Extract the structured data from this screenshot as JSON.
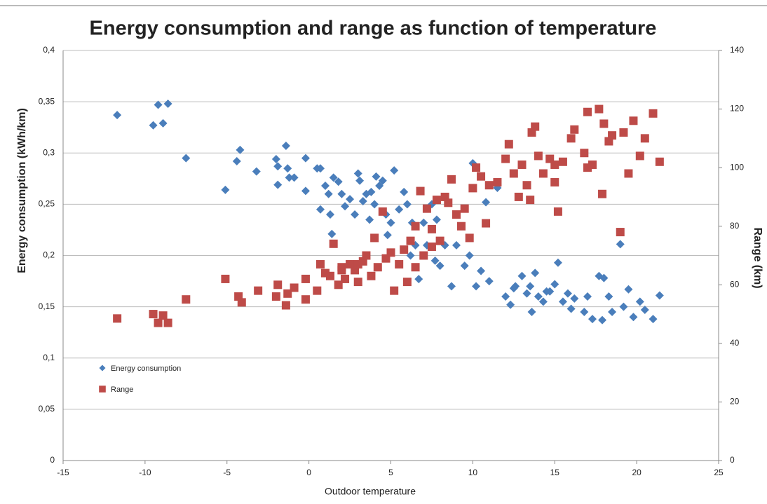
{
  "chart_data": {
    "type": "scatter",
    "title": "Energy consumption and range as function of temperature",
    "x_label": "Outdoor temperature",
    "y_label": "Energy consumption (kWh/km)",
    "y2_label": "Range (km)",
    "xlim": [
      -15,
      25
    ],
    "xticks": [
      -15,
      -10,
      -5,
      0,
      5,
      10,
      15,
      20,
      25
    ],
    "ylim": [
      0,
      0.4
    ],
    "yticks": [
      0,
      {
        "value": 0.05,
        "label": "0,05"
      },
      {
        "value": 0.1,
        "label": "0,1"
      },
      {
        "value": 0.15,
        "label": "0,15"
      },
      {
        "value": 0.2,
        "label": "0,2"
      },
      {
        "value": 0.25,
        "label": "0,25"
      },
      {
        "value": 0.3,
        "label": "0,3"
      },
      {
        "value": 0.35,
        "label": "0,35"
      },
      {
        "value": 0.4,
        "label": "0,4"
      }
    ],
    "y2lim": [
      0,
      140
    ],
    "y2ticks": [
      0,
      20,
      40,
      60,
      80,
      100,
      120,
      140
    ],
    "grid": true,
    "legend": "lower-left",
    "series": [
      {
        "name": "Energy consumption",
        "color": "#4a7ebb",
        "marker": "diamond",
        "x": [
          -11.7,
          -9.5,
          -9.2,
          -8.9,
          -8.6,
          -7.5,
          -5.1,
          -4.4,
          -4.2,
          -3.2,
          -2,
          -1.9,
          -1.9,
          -1.4,
          -1.3,
          -1.2,
          -0.9,
          -0.2,
          -0.2,
          0.5,
          0.7,
          0.7,
          1,
          1.2,
          1.3,
          1.4,
          1.5,
          1.8,
          2,
          2.2,
          2.5,
          2.8,
          3,
          3.1,
          3.3,
          3.5,
          3.8,
          4,
          4.1,
          4.3,
          4.5,
          4.7,
          5,
          5.2,
          5.5,
          5.8,
          6,
          6.3,
          6.5,
          6.7,
          7,
          7.2,
          7.5,
          7.8,
          8,
          8.3,
          8.7,
          9,
          9.5,
          9.8,
          10,
          10.2,
          10.5,
          10.8,
          11,
          11.5,
          12,
          12.3,
          12.6,
          13,
          13.3,
          13.6,
          13.8,
          14,
          14.3,
          14.7,
          15,
          15.2,
          15.5,
          16,
          16.2,
          16.8,
          17,
          17.3,
          17.7,
          17.9,
          18,
          18.3,
          18.5,
          19,
          19.2,
          19.5,
          19.8,
          20.2,
          20.5,
          21,
          21.4,
          12.5,
          13.5,
          14.5,
          15.8,
          3.7,
          4.8,
          6.2,
          7.7
        ],
        "values": [
          0.337,
          0.327,
          0.347,
          0.329,
          0.348,
          0.295,
          0.264,
          0.292,
          0.303,
          0.282,
          0.294,
          0.269,
          0.287,
          0.307,
          0.285,
          0.276,
          0.276,
          0.295,
          0.263,
          0.285,
          0.285,
          0.245,
          0.268,
          0.26,
          0.24,
          0.221,
          0.276,
          0.272,
          0.26,
          0.248,
          0.255,
          0.24,
          0.28,
          0.273,
          0.253,
          0.26,
          0.262,
          0.25,
          0.277,
          0.268,
          0.273,
          0.24,
          0.232,
          0.283,
          0.245,
          0.262,
          0.25,
          0.232,
          0.21,
          0.177,
          0.232,
          0.21,
          0.25,
          0.235,
          0.19,
          0.21,
          0.17,
          0.21,
          0.19,
          0.2,
          0.29,
          0.17,
          0.185,
          0.252,
          0.175,
          0.266,
          0.16,
          0.152,
          0.17,
          0.18,
          0.163,
          0.145,
          0.183,
          0.16,
          0.155,
          0.165,
          0.172,
          0.193,
          0.155,
          0.148,
          0.158,
          0.145,
          0.16,
          0.138,
          0.18,
          0.137,
          0.178,
          0.16,
          0.145,
          0.211,
          0.15,
          0.167,
          0.14,
          0.155,
          0.147,
          0.138,
          0.161,
          0.168,
          0.17,
          0.165,
          0.163,
          0.235,
          0.22,
          0.2,
          0.195
        ]
      },
      {
        "name": "Range",
        "color": "#be4b48",
        "marker": "square",
        "axis": "y2",
        "x": [
          -11.7,
          -9.5,
          -9.2,
          -8.9,
          -8.6,
          -7.5,
          -5.1,
          -4.3,
          -4.1,
          -3.1,
          -2,
          -1.9,
          -1.4,
          -1.3,
          -0.9,
          -0.2,
          -0.2,
          0.5,
          0.7,
          1,
          1.3,
          1.5,
          1.8,
          2,
          2.2,
          2.5,
          2.8,
          3,
          3.3,
          3.5,
          3.8,
          4,
          4.2,
          4.5,
          4.7,
          5,
          5.2,
          5.5,
          5.8,
          6,
          6.2,
          6.5,
          6.8,
          7,
          7.2,
          7.5,
          7.8,
          8,
          8.3,
          8.7,
          9,
          9.3,
          9.5,
          9.8,
          10,
          10.2,
          10.5,
          10.8,
          11,
          11.5,
          12,
          12.2,
          12.5,
          12.8,
          13,
          13.3,
          13.6,
          13.8,
          14,
          14.3,
          14.7,
          15,
          15.2,
          15.5,
          16,
          16.2,
          16.8,
          17,
          17.3,
          17.7,
          17.9,
          18,
          18.3,
          18.5,
          19,
          19.2,
          19.5,
          19.8,
          20.2,
          20.5,
          21,
          21.4,
          6.5,
          7.5,
          8.5,
          3,
          2,
          13.5,
          15,
          17
        ],
        "values": [
          48.5,
          50,
          47,
          49.5,
          47,
          55,
          62,
          56,
          54,
          58,
          56,
          60,
          53,
          57,
          59,
          62,
          55,
          58,
          67,
          64,
          63,
          74,
          60,
          66,
          62,
          67,
          65,
          61,
          68,
          70,
          63,
          76,
          66,
          85,
          69,
          71,
          58,
          67,
          72,
          61,
          75,
          80,
          92,
          70,
          86,
          79,
          89,
          75,
          90,
          96,
          84,
          80,
          86,
          76,
          93,
          100,
          97,
          81,
          94,
          95,
          103,
          108,
          98,
          90,
          101,
          94,
          112,
          114,
          104,
          98,
          103,
          95,
          85,
          102,
          110,
          113,
          105,
          119,
          101,
          120,
          91,
          115,
          109,
          111,
          78,
          112,
          98,
          116,
          104,
          110,
          118.5,
          102,
          66,
          73,
          88,
          67,
          65,
          89,
          101,
          100
        ]
      }
    ]
  }
}
